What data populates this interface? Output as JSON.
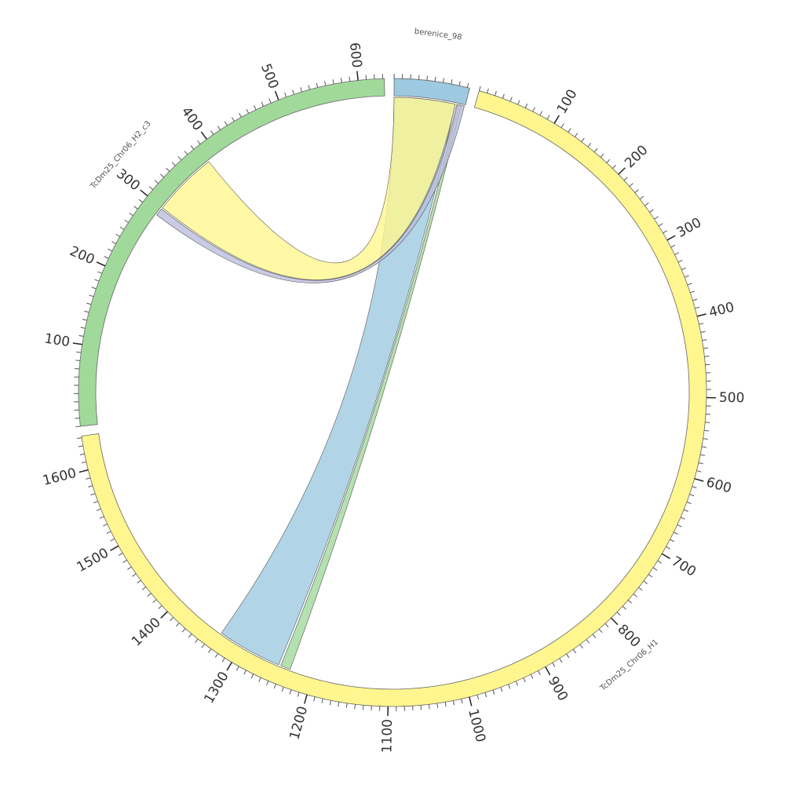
{
  "chart_data": {
    "type": "chord",
    "segments": [
      {
        "name": "berenice_98",
        "color": "#9ecae1",
        "length": 93,
        "ticks": [],
        "minor_tick_step": 10
      },
      {
        "name": "TcDm25_Chr06_H1",
        "color": "#fff68f",
        "length": 1642,
        "ticks": [
          100,
          200,
          300,
          400,
          500,
          600,
          700,
          800,
          900,
          1000,
          1100,
          1200,
          1300,
          1400,
          1500,
          1600
        ],
        "minor_tick_step": 10
      },
      {
        "name": "TcDm25_Chr06_H2_c3",
        "color": "#a1d99b",
        "length": 632,
        "ticks": [
          100,
          200,
          300,
          400,
          500,
          600
        ],
        "minor_tick_step": 10
      }
    ],
    "links": [
      {
        "source": 0,
        "source_range": [
          0,
          80
        ],
        "target": 1,
        "target_range": [
          1246,
          1331
        ],
        "color": "#9ecae1"
      },
      {
        "source": 0,
        "source_range": [
          83,
          88
        ],
        "target": 1,
        "target_range": [
          1230,
          1243
        ],
        "color": "#a1d99b"
      },
      {
        "source": 0,
        "source_range": [
          82,
          92
        ],
        "target": 2,
        "target_range": [
          288,
          298
        ],
        "color": "#bcbddc"
      },
      {
        "source": 0,
        "source_range": [
          0,
          80
        ],
        "target": 2,
        "target_range": [
          300,
          385
        ],
        "color": "#fff68f"
      }
    ]
  }
}
